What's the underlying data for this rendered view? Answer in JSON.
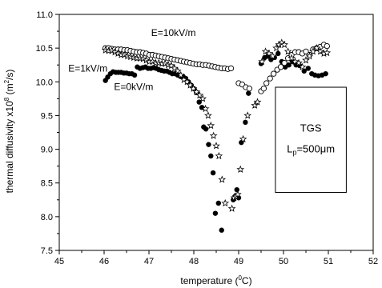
{
  "chart_data": {
    "type": "scatter",
    "title": "",
    "xlabel": {
      "prefix": "temperature (",
      "sup": "0",
      "suffix": "C)"
    },
    "ylabel": {
      "prefix": "thermal diffusivity x10",
      "sup1": "8",
      "middle": " (m",
      "sup2": "2",
      "suffix": "/s)"
    },
    "xlim": [
      45,
      52
    ],
    "ylim": [
      7.5,
      11.0
    ],
    "xticks": [
      "45",
      "46",
      "47",
      "48",
      "49",
      "50",
      "51",
      "52"
    ],
    "yticks": [
      "7.5",
      "8.0",
      "8.5",
      "9.0",
      "9.5",
      "10.0",
      "10.5",
      "11.0"
    ],
    "grid": false,
    "annotations": [
      {
        "text": "E=10kV/m",
        "x": 47.05,
        "y": 10.68
      },
      {
        "text": "E=1kV/m",
        "x": 45.2,
        "y": 10.15
      },
      {
        "text": "E=0kV/m",
        "x": 46.22,
        "y": 9.88
      }
    ],
    "legend_box": {
      "line1": "TGS",
      "line2_prefix": "L",
      "line2_sub": "p",
      "line2_suffix": "=500",
      "line2_mu": "μ",
      "line2_unit": "m",
      "x1": 49.82,
      "x2": 51.4,
      "y1": 9.92,
      "y2": 8.36
    },
    "series": [
      {
        "marker": "circle-filled",
        "x": [
          46.03,
          46.08,
          46.14,
          46.2,
          46.26,
          46.32,
          46.38,
          46.44,
          46.5,
          46.56,
          46.62,
          46.68,
          46.74,
          46.8,
          46.86,
          46.92,
          46.98,
          47.04,
          47.1,
          47.16,
          47.22,
          47.28,
          47.34,
          47.4,
          47.46,
          47.52,
          47.58,
          47.64,
          47.7,
          47.76,
          47.82,
          47.88,
          47.94,
          48.0,
          48.06,
          48.12,
          48.18,
          48.22,
          48.27,
          48.33,
          48.38,
          48.43,
          48.48,
          48.55,
          48.62,
          48.88,
          48.92,
          48.96,
          49.0,
          49.06,
          49.15,
          49.22,
          49.5,
          49.58,
          49.65,
          49.72,
          49.8,
          49.88,
          49.96,
          50.04,
          50.12,
          50.2,
          50.28,
          50.36,
          50.46,
          50.55,
          50.63,
          50.7,
          50.78,
          50.86,
          50.94
        ],
        "y": [
          10.02,
          10.07,
          10.12,
          10.15,
          10.14,
          10.14,
          10.14,
          10.13,
          10.13,
          10.12,
          10.12,
          10.1,
          10.22,
          10.2,
          10.21,
          10.22,
          10.2,
          10.2,
          10.21,
          10.2,
          10.18,
          10.17,
          10.16,
          10.16,
          10.14,
          10.12,
          10.12,
          10.1,
          10.08,
          10.08,
          10.05,
          10.0,
          9.95,
          9.9,
          9.84,
          9.7,
          9.62,
          9.33,
          9.3,
          9.07,
          8.9,
          8.65,
          8.05,
          8.2,
          7.8,
          8.25,
          8.3,
          8.4,
          8.28,
          9.1,
          9.4,
          9.83,
          10.27,
          10.36,
          10.38,
          10.33,
          10.36,
          10.42,
          10.3,
          10.22,
          10.25,
          10.3,
          10.25,
          10.24,
          10.16,
          10.2,
          10.12,
          10.1,
          10.09,
          10.1,
          10.12
        ]
      },
      {
        "marker": "circle-open",
        "x": [
          46.03,
          46.1,
          46.17,
          46.24,
          46.31,
          46.38,
          46.45,
          46.52,
          46.59,
          46.66,
          46.73,
          46.8,
          46.87,
          46.94,
          47.01,
          47.08,
          47.15,
          47.22,
          47.29,
          47.36,
          47.43,
          47.5,
          47.57,
          47.64,
          47.71,
          47.78,
          47.85,
          47.92,
          47.99,
          48.06,
          48.13,
          48.2,
          48.27,
          48.34,
          48.41,
          48.48,
          48.55,
          48.62,
          48.69,
          48.76,
          48.83,
          49.0,
          49.08,
          49.16,
          49.24,
          49.5,
          49.56,
          49.62,
          49.7,
          49.78,
          49.86,
          49.94,
          50.02,
          50.1,
          50.18,
          50.26,
          50.34,
          50.42,
          50.5,
          50.58,
          50.66,
          50.74,
          50.82,
          50.9,
          50.97
        ],
        "y": [
          10.5,
          10.5,
          10.49,
          10.48,
          10.48,
          10.48,
          10.47,
          10.47,
          10.46,
          10.45,
          10.44,
          10.44,
          10.43,
          10.42,
          10.4,
          10.4,
          10.39,
          10.38,
          10.37,
          10.36,
          10.35,
          10.34,
          10.33,
          10.32,
          10.31,
          10.3,
          10.29,
          10.28,
          10.27,
          10.26,
          10.26,
          10.25,
          10.25,
          10.24,
          10.23,
          10.22,
          10.21,
          10.2,
          10.2,
          10.19,
          10.2,
          9.98,
          9.96,
          9.92,
          9.9,
          9.86,
          9.9,
          9.98,
          10.05,
          10.12,
          10.18,
          10.22,
          10.28,
          10.35,
          10.4,
          10.44,
          10.44,
          10.42,
          10.45,
          10.4,
          10.48,
          10.5,
          10.52,
          10.55,
          10.53
        ]
      },
      {
        "marker": "star-open",
        "x": [
          46.03,
          46.1,
          46.17,
          46.24,
          46.31,
          46.38,
          46.45,
          46.52,
          46.59,
          46.66,
          46.73,
          46.8,
          46.87,
          46.94,
          47.01,
          47.08,
          47.15,
          47.22,
          47.29,
          47.36,
          47.43,
          47.5,
          47.57,
          47.64,
          47.71,
          47.78,
          47.85,
          47.92,
          47.99,
          48.06,
          48.13,
          48.2,
          48.26,
          48.32,
          48.38,
          48.44,
          48.5,
          48.56,
          48.63,
          48.7,
          48.85,
          48.9,
          48.94,
          48.98,
          49.04,
          49.1,
          49.2,
          49.36,
          49.42,
          49.52,
          49.6,
          49.68,
          49.76,
          49.84,
          49.9,
          49.96,
          50.02,
          50.1,
          50.18,
          50.26,
          50.34,
          50.42,
          50.5,
          50.58,
          50.66,
          50.74,
          50.82,
          50.9,
          50.97
        ],
        "y": [
          10.47,
          10.46,
          10.46,
          10.44,
          10.42,
          10.4,
          10.4,
          10.38,
          10.37,
          10.36,
          10.35,
          10.35,
          10.34,
          10.32,
          10.3,
          10.3,
          10.28,
          10.28,
          10.27,
          10.27,
          10.25,
          10.24,
          10.2,
          10.16,
          10.1,
          10.03,
          10.0,
          9.95,
          9.9,
          9.85,
          9.8,
          9.75,
          9.6,
          9.5,
          9.35,
          9.2,
          9.05,
          8.9,
          8.55,
          8.2,
          8.12,
          8.28,
          8.3,
          8.33,
          8.7,
          9.15,
          9.5,
          9.65,
          9.7,
          10.3,
          10.45,
          10.42,
          10.38,
          10.5,
          10.55,
          10.58,
          10.55,
          10.45,
          10.35,
          10.3,
          10.28,
          10.22,
          10.32,
          10.38,
          10.45,
          10.5,
          10.45,
          10.42,
          10.43
        ]
      }
    ]
  }
}
